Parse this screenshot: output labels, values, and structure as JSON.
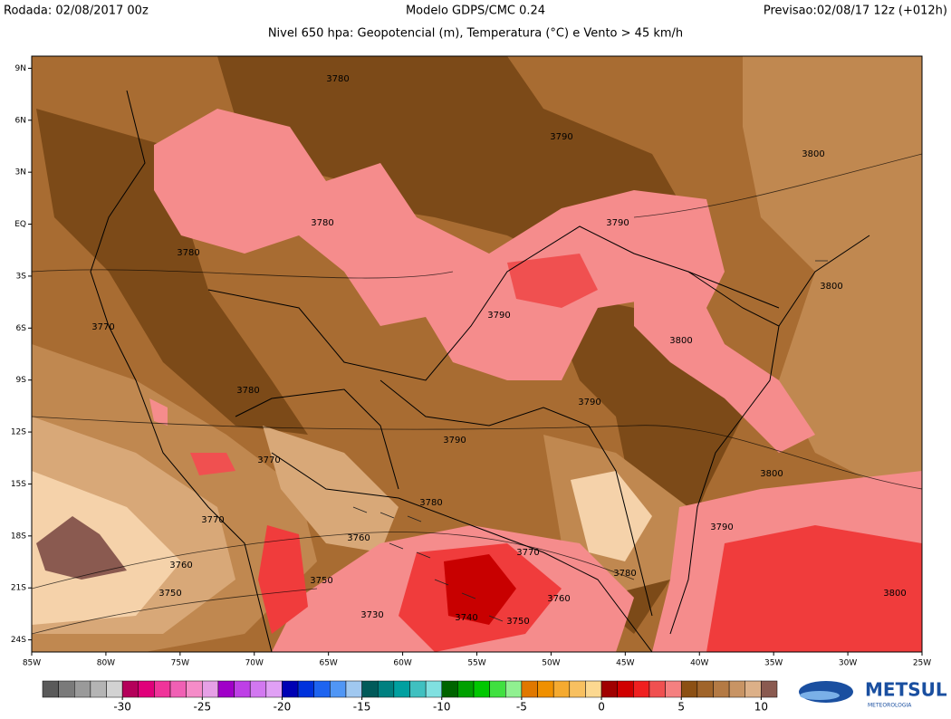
{
  "header": {
    "left": "Rodada: 02/08/2017 00z",
    "center": "Modelo GDPS/CMC 0.24",
    "right": "Previsao:02/08/17 12z (+012h)",
    "subtitle": "Nivel 650 hpa: Geopotencial (m), Temperatura (°C) e Vento > 45 km/h"
  },
  "map": {
    "lon_range": [
      -85,
      -25
    ],
    "lat_range": [
      9.7,
      -24.7
    ],
    "lon_ticks": [
      {
        "value": -85,
        "label": "85W"
      },
      {
        "value": -80,
        "label": "80W"
      },
      {
        "value": -75,
        "label": "75W"
      },
      {
        "value": -70,
        "label": "70W"
      },
      {
        "value": -65,
        "label": "65W"
      },
      {
        "value": -60,
        "label": "60W"
      },
      {
        "value": -55,
        "label": "55W"
      },
      {
        "value": -50,
        "label": "50W"
      },
      {
        "value": -45,
        "label": "45W"
      },
      {
        "value": -40,
        "label": "40W"
      },
      {
        "value": -35,
        "label": "35W"
      },
      {
        "value": -30,
        "label": "30W"
      },
      {
        "value": -25,
        "label": "25W"
      }
    ],
    "lat_ticks": [
      {
        "value": 9,
        "label": "9N"
      },
      {
        "value": 6,
        "label": "6N"
      },
      {
        "value": 3,
        "label": "3N"
      },
      {
        "value": 0,
        "label": "EQ"
      },
      {
        "value": -3,
        "label": "3S"
      },
      {
        "value": -6,
        "label": "6S"
      },
      {
        "value": -9,
        "label": "9S"
      },
      {
        "value": -12,
        "label": "12S"
      },
      {
        "value": -15,
        "label": "15S"
      },
      {
        "value": -18,
        "label": "18S"
      },
      {
        "value": -21,
        "label": "21S"
      },
      {
        "value": -24,
        "label": "24S"
      }
    ],
    "contour_labels": [
      "3780",
      "3790",
      "3800",
      "3780",
      "3790",
      "3780",
      "3800",
      "3790",
      "3770",
      "3800",
      "3780",
      "3790",
      "3790",
      "3770",
      "3800",
      "3780",
      "3770",
      "3790",
      "3760",
      "3770",
      "3760",
      "3780",
      "3750",
      "3750",
      "3760",
      "3800",
      "3730",
      "3740",
      "3750"
    ]
  },
  "colorbar": {
    "range": [
      -35,
      11
    ],
    "ticks": [
      -30,
      -25,
      -20,
      -15,
      -10,
      -5,
      0,
      5,
      10
    ],
    "colors": [
      "#5a5a5a",
      "#7a7a7a",
      "#9a9a9a",
      "#b4b4b4",
      "#d2d2d2",
      "#b4005a",
      "#e0007a",
      "#f0349a",
      "#f060b4",
      "#f58cc8",
      "#e6a0e6",
      "#a000c8",
      "#be40e6",
      "#d278f0",
      "#e0a0f5",
      "#0000b4",
      "#0032dc",
      "#1e64f0",
      "#5096f5",
      "#a0c8f0",
      "#005a5a",
      "#008080",
      "#00a0a0",
      "#40c0c0",
      "#80e0e0",
      "#006400",
      "#00a000",
      "#00c800",
      "#40e040",
      "#90f090",
      "#e07800",
      "#f09000",
      "#f5aa30",
      "#f8c060",
      "#fcd890",
      "#a00000",
      "#d00000",
      "#f02020",
      "#f05050",
      "#f58080",
      "#8c5014",
      "#a0642a",
      "#b47a44",
      "#c89464",
      "#dcb088",
      "#8a5a50"
    ]
  },
  "logo": {
    "name": "METSUL",
    "sub": "METEOROLOGIA"
  }
}
